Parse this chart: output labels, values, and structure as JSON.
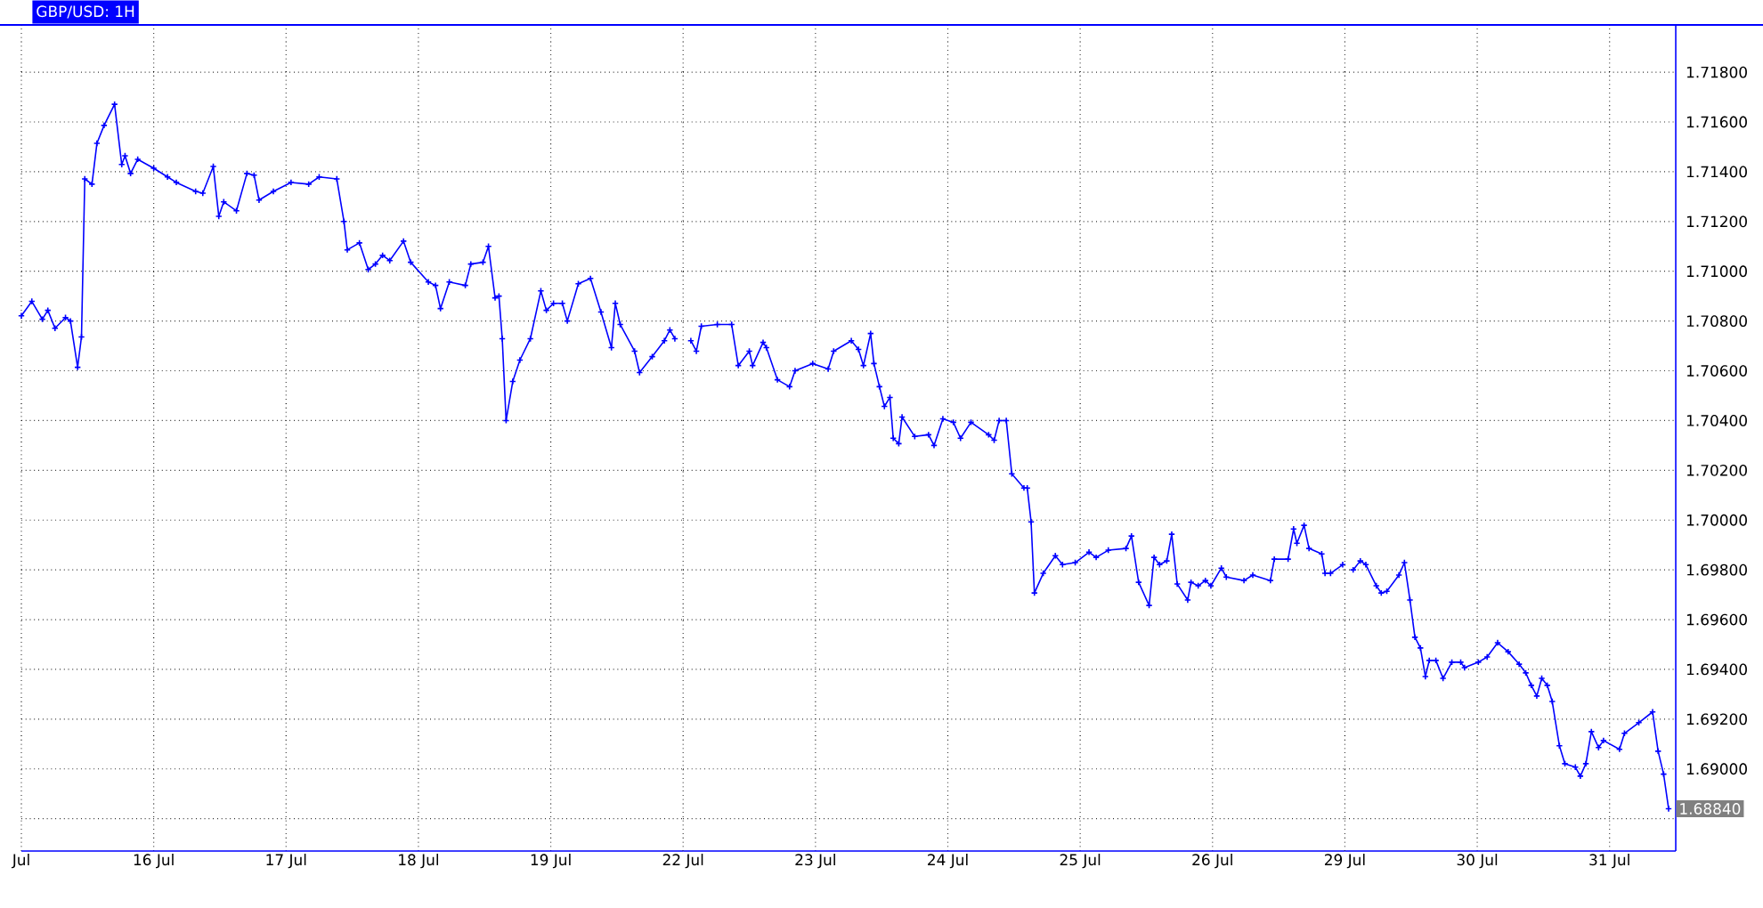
{
  "chart_data": [
    {
      "type": "line",
      "title": "GBP/USD: 1H",
      "color": "#0000ff",
      "marker": "cross",
      "line_style": "solid",
      "grid": true,
      "tick_labels": "x",
      "xlim": [
        "--07-15T00:00",
        "--07-20T00:00"
      ],
      "ylim": [
        1.6867,
        1.7199
      ],
      "xticks": [
        {
          "value": "--07-15",
          "label": "Jul"
        },
        {
          "value": "--07-16",
          "label": "16 Jul"
        },
        {
          "value": "--07-17",
          "label": "17 Jul"
        },
        {
          "value": "--07-18",
          "label": "18 Jul"
        },
        {
          "value": "--07-19",
          "label": "19 Jul"
        }
      ],
      "yticks": [
        1.688,
        1.69,
        1.692,
        1.694,
        1.696,
        1.698,
        1.7,
        1.702,
        1.704,
        1.706,
        1.708,
        1.71,
        1.712,
        1.714,
        1.716,
        1.718
      ],
      "x": [
        "--07-15T00:00",
        "--07-15T01:54",
        "--07-15T03:48",
        "--07-15T04:48",
        "--07-15T06:06",
        "--07-15T08:00",
        "--07-15T08:54",
        "--07-15T10:12",
        "--07-15T10:54",
        "--07-15T11:30",
        "--07-15T12:48",
        "--07-15T13:42",
        "--07-15T15:00",
        "--07-15T16:54",
        "--07-15T18:12",
        "--07-15T18:48",
        "--07-15T19:48",
        "--07-15T21:06",
        "--07-16T00:00",
        "--07-16T02:30",
        "--07-16T04:06",
        "--07-16T07:36",
        "--07-16T08:54",
        "--07-16T10:48",
        "--07-16T11:48",
        "--07-16T12:42",
        "--07-16T15:00",
        "--07-16T16:54",
        "--07-16T18:12",
        "--07-16T19:06",
        "--07-16T21:42",
        "--07-17T00:54",
        "--07-17T04:06",
        "--07-17T06:00",
        "--07-17T09:12",
        "--07-17T10:30",
        "--07-17T11:06",
        "--07-17T13:18",
        "--07-17T14:54",
        "--07-17T16:12",
        "--07-17T17:30",
        "--07-17T18:48",
        "--07-17T21:18",
        "--07-17T22:36",
        "--07-18T01:48",
        "--07-18T03:06",
        "--07-18T04:00",
        "--07-18T05:36",
        "--07-18T08:30",
        "--07-18T09:30",
        "--07-18T11:42",
        "--07-18T12:42",
        "--07-18T13:54",
        "--07-18T14:36",
        "--07-18T15:12",
        "--07-18T15:54",
        "--07-18T17:06",
        "--07-18T18:24",
        "--07-18T20:18",
        "--07-18T22:12",
        "--07-18T23:12",
        "--07-19T00:30",
        "--07-19T02:06",
        "--07-19T03:00",
        "--07-19T05:00",
        "--07-19T07:12",
        "--07-19T09:06",
        "--07-19T11:00",
        "--07-19T11:42",
        "--07-19T12:36",
        "--07-19T15:12",
        "--07-19T16:06",
        "--07-19T18:24",
        "--07-19T20:36",
        "--07-19T21:36",
        "--07-19T22:30"
      ],
      "values": [
        1.70821,
        1.70879,
        1.70807,
        1.70843,
        1.70771,
        1.70814,
        1.708,
        1.70614,
        1.70736,
        1.71371,
        1.7135,
        1.71514,
        1.71586,
        1.71671,
        1.71429,
        1.71464,
        1.71393,
        1.7145,
        1.71414,
        1.71379,
        1.71357,
        1.71321,
        1.71314,
        1.71421,
        1.71221,
        1.71279,
        1.71243,
        1.71393,
        1.71386,
        1.71286,
        1.71321,
        1.71357,
        1.7135,
        1.71379,
        1.71371,
        1.712,
        1.71086,
        1.71114,
        1.71007,
        1.71029,
        1.71064,
        1.71043,
        1.71121,
        1.71036,
        1.70957,
        1.70943,
        1.7085,
        1.70957,
        1.70943,
        1.71029,
        1.71036,
        1.711,
        1.70893,
        1.709,
        1.70729,
        1.704,
        1.70557,
        1.70643,
        1.70729,
        1.70921,
        1.70843,
        1.70871,
        1.70871,
        1.708,
        1.7095,
        1.70971,
        1.70836,
        1.70693,
        1.70871,
        1.70786,
        1.70679,
        1.70593,
        1.70657,
        1.70721,
        1.70764,
        1.70729
      ]
    },
    {
      "type": "line",
      "color": "#0000ff",
      "marker": "cross",
      "line_style": "solid",
      "grid": true,
      "tick_labels": "x",
      "xlim": [
        "--07-22T00:00",
        "--07-27T00:00"
      ],
      "ylim": [
        1.6867,
        1.7199
      ],
      "xticks": [
        {
          "value": "--07-22",
          "label": "22 Jul"
        },
        {
          "value": "--07-23",
          "label": "23 Jul"
        },
        {
          "value": "--07-24",
          "label": "24 Jul"
        },
        {
          "value": "--07-25",
          "label": "25 Jul"
        },
        {
          "value": "--07-26",
          "label": "26 Jul"
        }
      ],
      "yticks": [
        1.688,
        1.69,
        1.692,
        1.694,
        1.696,
        1.698,
        1.7,
        1.702,
        1.704,
        1.706,
        1.708,
        1.71,
        1.712,
        1.714,
        1.716,
        1.718
      ],
      "x": [
        "--07-22T01:24",
        "--07-22T02:24",
        "--07-22T03:18",
        "--07-22T06:12",
        "--07-22T08:48",
        "--07-22T10:00",
        "--07-22T12:00",
        "--07-22T12:36",
        "--07-22T14:30",
        "--07-22T15:06",
        "--07-22T17:06",
        "--07-22T19:18",
        "--07-22T20:18",
        "--07-22T23:30",
        "--07-23T02:18",
        "--07-23T03:18",
        "--07-23T06:30",
        "--07-23T07:48",
        "--07-23T08:42",
        "--07-23T10:00",
        "--07-23T10:36",
        "--07-23T11:36",
        "--07-23T12:30",
        "--07-23T13:30",
        "--07-23T14:06",
        "--07-23T15:06",
        "--07-23T15:42",
        "--07-23T18:00",
        "--07-23T20:30",
        "--07-23T21:30",
        "--07-23T23:06",
        "--07-24T01:00",
        "--07-24T02:18",
        "--07-24T04:12",
        "--07-24T07:24",
        "--07-24T08:24",
        "--07-24T09:18",
        "--07-24T10:36",
        "--07-24T11:36",
        "--07-24T13:48",
        "--07-24T14:24",
        "--07-24T15:06",
        "--07-24T15:42",
        "--07-24T17:18",
        "--07-24T19:30",
        "--07-24T20:48",
        "--07-24T23:06",
        "--07-25T01:36",
        "--07-25T02:54",
        "--07-25T05:06",
        "--07-25T08:18",
        "--07-25T09:18",
        "--07-25T10:36",
        "--07-25T12:30",
        "--07-25T13:24",
        "--07-25T14:24",
        "--07-25T15:42",
        "--07-25T16:36",
        "--07-25T17:36",
        "--07-25T19:30",
        "--07-25T20:06",
        "--07-25T21:24",
        "--07-25T22:42",
        "--07-25T23:42",
        "--07-26T01:36",
        "--07-26T02:30",
        "--07-26T05:42",
        "--07-26T07:18",
        "--07-26T10:30",
        "--07-26T11:12",
        "--07-26T13:42",
        "--07-26T14:42",
        "--07-26T15:18",
        "--07-26T16:36",
        "--07-26T17:30",
        "--07-26T19:48",
        "--07-26T20:24",
        "--07-26T21:24",
        "--07-26T23:36"
      ],
      "values": [
        1.70721,
        1.70679,
        1.70779,
        1.70786,
        1.70786,
        1.70621,
        1.70679,
        1.70621,
        1.70714,
        1.70693,
        1.70564,
        1.70536,
        1.706,
        1.70629,
        1.70607,
        1.70679,
        1.70721,
        1.70686,
        1.70621,
        1.7075,
        1.70629,
        1.70536,
        1.70457,
        1.70493,
        1.70329,
        1.70307,
        1.70414,
        1.70336,
        1.70343,
        1.703,
        1.70407,
        1.70393,
        1.70329,
        1.70393,
        1.70343,
        1.70321,
        1.704,
        1.704,
        1.70186,
        1.70129,
        1.70129,
        1.69993,
        1.69707,
        1.69786,
        1.69857,
        1.69821,
        1.69829,
        1.69871,
        1.6985,
        1.69879,
        1.69886,
        1.69936,
        1.6975,
        1.69657,
        1.6985,
        1.69821,
        1.69836,
        1.69943,
        1.69743,
        1.69679,
        1.6975,
        1.69736,
        1.69757,
        1.69736,
        1.69807,
        1.69771,
        1.69757,
        1.69779,
        1.69757,
        1.69843,
        1.69843,
        1.69964,
        1.69907,
        1.69979,
        1.69886,
        1.69864,
        1.69786,
        1.69786,
        1.69821
      ]
    },
    {
      "type": "line",
      "color": "#0000ff",
      "marker": "cross",
      "line_style": "solid",
      "grid": true,
      "xlim": [
        "--07-29T00:00",
        "--07-31T12:00"
      ],
      "ylim": [
        1.6867,
        1.7199
      ],
      "xticks": [
        {
          "value": "--07-29",
          "label": "29 Jul"
        },
        {
          "value": "--07-30",
          "label": "30 Jul"
        },
        {
          "value": "--07-31",
          "label": "31 Jul"
        }
      ],
      "yticks": [
        {
          "value": 1.688,
          "label": null
        },
        {
          "value": 1.69,
          "label": "1.69000"
        },
        {
          "value": 1.692,
          "label": "1.69200"
        },
        {
          "value": 1.694,
          "label": "1.69400"
        },
        {
          "value": 1.696,
          "label": "1.69600"
        },
        {
          "value": 1.698,
          "label": "1.69800"
        },
        {
          "value": 1.7,
          "label": "1.70000"
        },
        {
          "value": 1.702,
          "label": "1.70200"
        },
        {
          "value": 1.704,
          "label": "1.70400"
        },
        {
          "value": 1.706,
          "label": "1.70600"
        },
        {
          "value": 1.708,
          "label": "1.70800"
        },
        {
          "value": 1.71,
          "label": "1.71000"
        },
        {
          "value": 1.712,
          "label": "1.71200"
        },
        {
          "value": 1.714,
          "label": "1.71400"
        },
        {
          "value": 1.716,
          "label": "1.71600"
        },
        {
          "value": 1.718,
          "label": "1.71800"
        }
      ],
      "annotations": [
        {
          "text": "1.68840",
          "x": "--07-31T10:42",
          "y": 1.6884
        }
      ],
      "x": [
        "--07-29T01:30",
        "--07-29T02:48",
        "--07-29T03:48",
        "--07-29T05:42",
        "--07-29T06:36",
        "--07-29T07:36",
        "--07-29T09:48",
        "--07-29T10:48",
        "--07-29T11:48",
        "--07-29T12:42",
        "--07-29T13:42",
        "--07-29T14:36",
        "--07-29T15:18",
        "--07-29T16:30",
        "--07-29T17:48",
        "--07-29T19:24",
        "--07-29T21:00",
        "--07-29T21:42",
        "--07-30T00:12",
        "--07-30T01:48",
        "--07-30T03:42",
        "--07-30T05:36",
        "--07-30T07:36",
        "--07-30T08:48",
        "--07-30T09:48",
        "--07-30T10:48",
        "--07-30T11:42",
        "--07-30T12:42",
        "--07-30T13:36",
        "--07-30T14:54",
        "--07-30T15:54",
        "--07-30T17:48",
        "--07-30T18:42",
        "--07-30T19:42",
        "--07-30T20:42",
        "--07-30T22:00",
        "--07-30T22:54",
        "--07-31T01:48",
        "--07-31T02:42",
        "--07-31T05:18",
        "--07-31T07:48",
        "--07-31T08:48",
        "--07-31T09:48",
        "--07-31T10:42"
      ],
      "values": [
        1.698,
        1.69836,
        1.69821,
        1.69736,
        1.69707,
        1.69714,
        1.69779,
        1.69829,
        1.69679,
        1.69529,
        1.69486,
        1.69371,
        1.69436,
        1.69436,
        1.69364,
        1.69429,
        1.69429,
        1.69407,
        1.69429,
        1.6945,
        1.69507,
        1.69471,
        1.69421,
        1.69386,
        1.69336,
        1.69293,
        1.69364,
        1.69336,
        1.69271,
        1.69093,
        1.69021,
        1.69007,
        1.68971,
        1.69021,
        1.6915,
        1.69086,
        1.69114,
        1.69079,
        1.69143,
        1.69186,
        1.69229,
        1.69071,
        1.68979,
        1.6884
      ]
    }
  ]
}
